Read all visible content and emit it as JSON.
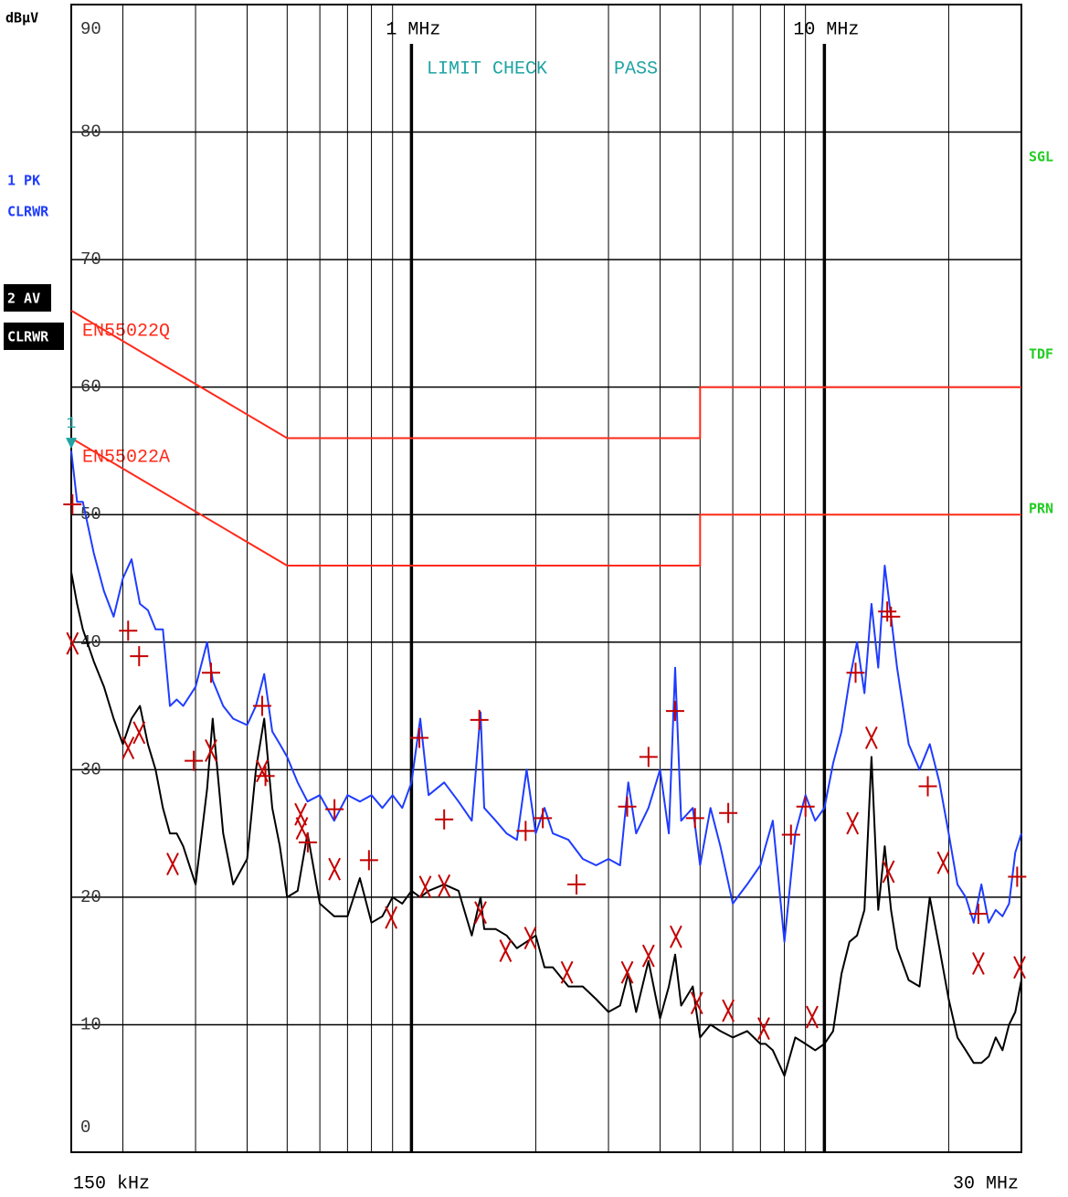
{
  "chart_data": {
    "type": "line",
    "y_unit": "dBµV",
    "log_x": true,
    "grid": true,
    "xlim": [
      0.15,
      30
    ],
    "xlim_labels": [
      "150 kHz",
      "30 MHz"
    ],
    "ylim": [
      0,
      90
    ],
    "yticks": [
      0,
      10,
      20,
      30,
      40,
      50,
      60,
      70,
      80,
      90
    ],
    "xticks": [
      {
        "value": 1,
        "label": "1 MHz"
      },
      {
        "value": 10,
        "label": "10 MHz"
      }
    ],
    "xgrid": [
      0.2,
      0.3,
      0.4,
      0.5,
      0.6,
      0.7,
      0.8,
      0.9,
      2,
      3,
      4,
      5,
      6,
      7,
      8,
      9,
      20
    ],
    "annotations": [
      "LIMIT CHECK",
      "PASS"
    ],
    "status_labels": [
      "SGL",
      "TDF",
      "PRN"
    ],
    "marker": {
      "label": "1",
      "x": 0.15,
      "value": 55.6,
      "color": "#1fa3a3"
    },
    "x": [
      0.15,
      0.155,
      0.16,
      0.17,
      0.18,
      0.19,
      0.2,
      0.21,
      0.22,
      0.23,
      0.24,
      0.25,
      0.26,
      0.27,
      0.28,
      0.3,
      0.32,
      0.33,
      0.35,
      0.37,
      0.4,
      0.42,
      0.44,
      0.46,
      0.48,
      0.5,
      0.53,
      0.56,
      0.6,
      0.65,
      0.7,
      0.75,
      0.8,
      0.85,
      0.9,
      0.95,
      1.0,
      1.05,
      1.1,
      1.2,
      1.3,
      1.4,
      1.47,
      1.5,
      1.6,
      1.7,
      1.8,
      1.9,
      2.0,
      2.1,
      2.2,
      2.4,
      2.6,
      2.8,
      3.0,
      3.2,
      3.35,
      3.5,
      3.75,
      4.0,
      4.2,
      4.35,
      4.5,
      4.8,
      5.0,
      5.3,
      5.6,
      6.0,
      6.5,
      7.0,
      7.2,
      7.5,
      8.0,
      8.5,
      9.0,
      9.5,
      10,
      10.5,
      11,
      11.5,
      12,
      12.5,
      13,
      13.5,
      14,
      14.5,
      15,
      16,
      17,
      18,
      19,
      20,
      21,
      22,
      23,
      24,
      25,
      26,
      27,
      28,
      29,
      30
    ],
    "series": [
      {
        "name": "1 PK",
        "mode": "CLRWR",
        "color": "#1f3cff",
        "values": [
          55,
          51,
          51,
          47,
          44,
          42,
          45,
          46.5,
          43,
          42.5,
          41,
          41,
          35,
          35.5,
          35,
          36.5,
          40,
          37,
          35,
          34,
          33.5,
          35,
          37.5,
          33,
          32,
          31,
          29,
          27.5,
          28,
          26,
          28,
          27.5,
          28,
          27,
          28,
          27,
          29,
          34,
          28,
          29,
          27.5,
          26,
          34.5,
          27,
          26,
          25,
          24.5,
          30,
          25,
          27,
          25,
          24.5,
          23,
          22.5,
          23,
          22.5,
          29,
          25,
          27,
          30,
          25,
          38,
          26,
          27,
          22.5,
          27,
          24,
          19.5,
          21,
          22.5,
          24,
          26,
          16.5,
          25,
          28,
          26,
          27,
          30.5,
          33,
          37,
          40,
          36,
          43,
          38,
          46,
          42,
          38,
          32,
          30,
          32,
          29,
          25,
          21,
          20,
          18,
          21,
          18,
          19,
          18.5,
          19.5,
          23.5,
          25
        ]
      },
      {
        "name": "2 AV",
        "mode": "CLRWR",
        "color": "#000000",
        "values": [
          45.5,
          43,
          41,
          38.5,
          36.5,
          34,
          32,
          34,
          35,
          32,
          30,
          27,
          25,
          25,
          24,
          21,
          28.5,
          34,
          25,
          21,
          23,
          30,
          34,
          27,
          24,
          20,
          20.5,
          25,
          19.5,
          18.5,
          18.5,
          21.5,
          18,
          18.5,
          20,
          19.5,
          20.5,
          20,
          20.5,
          21,
          20.5,
          17,
          20,
          17.5,
          17.5,
          17,
          16,
          16.5,
          17,
          14.5,
          14.5,
          13,
          13,
          12,
          11,
          11.5,
          14,
          11,
          15,
          10.5,
          13,
          15.5,
          11.5,
          13,
          9,
          10,
          9.5,
          9,
          9.5,
          8.5,
          8.5,
          8,
          6,
          9,
          8.5,
          8,
          8.5,
          9.5,
          14,
          16.5,
          17,
          19,
          31,
          19,
          24,
          19,
          16,
          13.5,
          13,
          20,
          16,
          12,
          9,
          8,
          7,
          7,
          7.5,
          9,
          8,
          10,
          11,
          13.5
        ]
      },
      {
        "name": "EN55022Q",
        "color": "#ff2a1a",
        "x": [
          0.15,
          0.5,
          5,
          5,
          30
        ],
        "values": [
          66,
          56,
          56,
          60,
          60
        ]
      },
      {
        "name": "EN55022A",
        "color": "#ff2a1a",
        "x": [
          0.15,
          0.5,
          5,
          5,
          30
        ],
        "values": [
          56,
          46,
          46,
          50,
          50
        ]
      }
    ],
    "final_peak": {
      "symbol": "+",
      "color": "#c40000",
      "x": [
        0.151,
        0.206,
        0.219,
        0.297,
        0.327,
        0.435,
        0.443,
        0.561,
        0.651,
        0.789,
        1.045,
        1.2,
        1.46,
        1.89,
        2.08,
        2.51,
        3.33,
        3.75,
        4.35,
        4.86,
        5.85,
        8.3,
        9.0,
        11.9,
        14.2,
        14.5,
        17.8,
        23.6,
        29.3
      ],
      "values": [
        50.8,
        40.9,
        38.9,
        30.7,
        37.6,
        35.0,
        29.5,
        24.3,
        26.9,
        22.9,
        32.5,
        26.1,
        33.9,
        25.2,
        26.2,
        21.0,
        27.1,
        31.0,
        34.6,
        26.2,
        26.6,
        24.9,
        27.1,
        37.6,
        42.4,
        42.0,
        28.7,
        18.7,
        21.6
      ]
    },
    "final_average": {
      "symbol": "x",
      "color": "#c40000",
      "x": [
        0.151,
        0.206,
        0.219,
        0.264,
        0.327,
        0.435,
        0.539,
        0.543,
        0.651,
        0.893,
        1.08,
        1.2,
        1.47,
        1.69,
        1.94,
        2.38,
        3.33,
        3.75,
        4.37,
        4.91,
        5.85,
        7.13,
        9.34,
        11.7,
        13.0,
        14.3,
        19.4,
        23.6,
        29.7
      ],
      "values": [
        39.9,
        31.7,
        32.9,
        22.6,
        31.5,
        29.9,
        26.5,
        25.4,
        22.2,
        18.4,
        20.8,
        20.9,
        18.8,
        15.8,
        16.8,
        14.1,
        14.1,
        15.4,
        16.9,
        11.7,
        11.1,
        9.7,
        10.6,
        25.8,
        32.5,
        22.0,
        22.7,
        14.8,
        14.5
      ]
    }
  }
}
